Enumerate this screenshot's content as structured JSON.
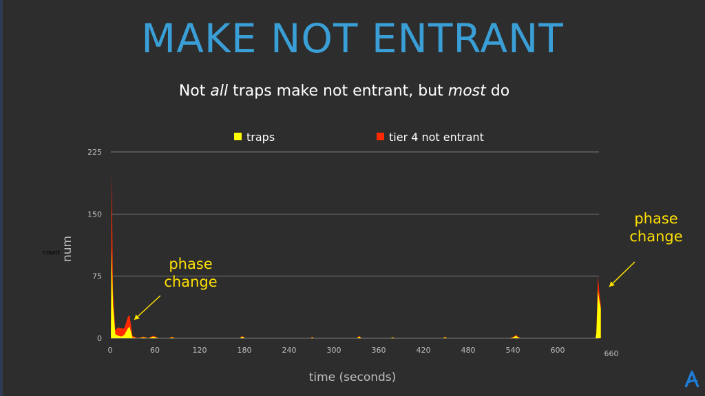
{
  "slide": {
    "title": "MAKE NOT ENTRANT",
    "subtitle_parts": [
      "Not ",
      "all",
      " traps make not entrant, but ",
      "most",
      " do"
    ]
  },
  "colors": {
    "title": "#3a9fd6",
    "traps": "#ffff00",
    "tier4": "#ff2a00",
    "annotation": "#ffe100",
    "logo": "#1e7fd8"
  },
  "icons": {
    "logo": "azul-logo-icon"
  },
  "chart_data": {
    "type": "area",
    "stacked": true,
    "xlabel": "time (seconds)",
    "ylabel": "num",
    "ylabel_small": "count",
    "xlim": [
      0,
      660
    ],
    "ylim": [
      0,
      225
    ],
    "x_ticks": [
      "0",
      "60",
      "120",
      "180",
      "240",
      "300",
      "360",
      "420",
      "480",
      "540",
      "600",
      "660"
    ],
    "y_ticks": [
      "0",
      "75",
      "150",
      "225"
    ],
    "grid": true,
    "legend_position": "top",
    "series": [
      {
        "name": "traps",
        "color": "#ffff00",
        "points": [
          [
            0,
            0
          ],
          [
            1,
            110
          ],
          [
            3,
            40
          ],
          [
            6,
            5
          ],
          [
            10,
            3
          ],
          [
            14,
            2
          ],
          [
            18,
            4
          ],
          [
            23,
            12
          ],
          [
            25,
            14
          ],
          [
            27,
            8
          ],
          [
            29,
            1
          ],
          [
            36,
            0
          ],
          [
            44,
            1
          ],
          [
            50,
            0
          ],
          [
            54,
            1
          ],
          [
            57,
            2
          ],
          [
            60,
            1
          ],
          [
            64,
            0
          ],
          [
            78,
            0
          ],
          [
            82,
            1
          ],
          [
            86,
            0
          ],
          [
            173,
            0
          ],
          [
            176,
            2
          ],
          [
            180,
            0
          ],
          [
            268,
            0
          ],
          [
            270,
            1
          ],
          [
            272,
            0
          ],
          [
            330,
            0
          ],
          [
            333,
            2
          ],
          [
            336,
            0
          ],
          [
            375,
            0
          ],
          [
            378,
            1
          ],
          [
            381,
            0
          ],
          [
            445,
            0
          ],
          [
            448,
            1
          ],
          [
            451,
            0
          ],
          [
            535,
            0
          ],
          [
            540,
            1
          ],
          [
            543,
            3
          ],
          [
            546,
            1
          ],
          [
            549,
            0
          ],
          [
            650,
            0
          ],
          [
            651,
            6
          ],
          [
            652,
            30
          ],
          [
            653,
            58
          ],
          [
            655,
            45
          ],
          [
            657,
            36
          ],
          [
            657,
            0
          ]
        ]
      },
      {
        "name": "tier 4 not entrant",
        "color": "#ff2a00",
        "points": [
          [
            0,
            0
          ],
          [
            1,
            90
          ],
          [
            3,
            15
          ],
          [
            6,
            5
          ],
          [
            10,
            10
          ],
          [
            14,
            10
          ],
          [
            18,
            8
          ],
          [
            23,
            14
          ],
          [
            25,
            14
          ],
          [
            27,
            8
          ],
          [
            29,
            2
          ],
          [
            36,
            0
          ],
          [
            44,
            1
          ],
          [
            50,
            0
          ],
          [
            54,
            1
          ],
          [
            57,
            1
          ],
          [
            60,
            1
          ],
          [
            64,
            0
          ],
          [
            78,
            0
          ],
          [
            82,
            1
          ],
          [
            86,
            0
          ],
          [
            173,
            0
          ],
          [
            176,
            1
          ],
          [
            180,
            0
          ],
          [
            268,
            0
          ],
          [
            270,
            1
          ],
          [
            272,
            0
          ],
          [
            330,
            0
          ],
          [
            333,
            1
          ],
          [
            336,
            0
          ],
          [
            375,
            0
          ],
          [
            378,
            0
          ],
          [
            381,
            0
          ],
          [
            445,
            0
          ],
          [
            448,
            1
          ],
          [
            451,
            0
          ],
          [
            535,
            0
          ],
          [
            540,
            1
          ],
          [
            543,
            1
          ],
          [
            546,
            1
          ],
          [
            549,
            0
          ],
          [
            650,
            0
          ],
          [
            651,
            3
          ],
          [
            652,
            10
          ],
          [
            653,
            17
          ],
          [
            655,
            10
          ],
          [
            657,
            4
          ],
          [
            657,
            0
          ]
        ]
      }
    ],
    "annotations": [
      {
        "text_lines": [
          "phase",
          "change"
        ]
      },
      {
        "text_lines": [
          "phase",
          "change"
        ]
      }
    ]
  }
}
